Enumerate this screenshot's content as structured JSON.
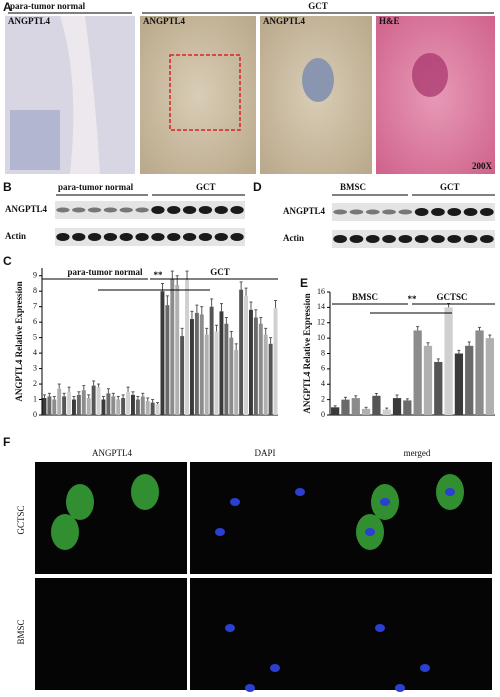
{
  "panels": {
    "A": {
      "letter": "A",
      "group_normal": "para-tumor normal",
      "group_gct": "GCT",
      "stain1": "ANGPTL4",
      "stain2": "ANGPTL4",
      "stain3": "ANGPTL4",
      "stain4": "H&E",
      "magnification": "200X"
    },
    "B": {
      "letter": "B",
      "group_normal": "para-tumor normal",
      "group_gct": "GCT",
      "row1": "ANGPTL4",
      "row2": "Actin"
    },
    "C": {
      "letter": "C"
    },
    "D": {
      "letter": "D",
      "group_bmsc": "BMSC",
      "group_gct": "GCT",
      "row1": "ANGPTL4",
      "row2": "Actin"
    },
    "E": {
      "letter": "E"
    },
    "F": {
      "letter": "F",
      "col1": "ANGPTL4",
      "col2": "DAPI",
      "col3": "merged",
      "row1": "GCTSC",
      "row2": "BMSC"
    }
  },
  "chart_data": [
    {
      "type": "bar",
      "y_label": "ANGPTL4 Relative Expression",
      "annotations": [
        "para-tumor normal",
        "GCT",
        "**"
      ],
      "values": [
        1.1,
        1.2,
        1.0,
        1.7,
        1.2,
        1.5,
        1.0,
        1.3,
        1.6,
        1.1,
        1.9,
        1.8,
        1.0,
        1.4,
        1.2,
        1.0,
        1.1,
        1.5,
        1.3,
        1.0,
        1.2,
        0.9,
        0.8,
        0.7,
        8.0,
        7.1,
        8.8,
        8.4,
        5.1,
        8.7,
        6.2,
        6.6,
        6.5,
        5.2,
        7.0,
        5.4,
        6.7,
        5.9,
        5.0,
        4.2,
        8.1,
        7.7,
        6.8,
        6.3,
        5.9,
        5.2,
        4.6,
        6.9
      ],
      "errors": [
        0.2,
        0.2,
        0.2,
        0.3,
        0.2,
        0.3,
        0.2,
        0.2,
        0.3,
        0.2,
        0.3,
        0.2,
        0.2,
        0.3,
        0.2,
        0.2,
        0.2,
        0.3,
        0.2,
        0.2,
        0.2,
        0.2,
        0.2,
        0.1,
        0.5,
        0.6,
        0.5,
        0.6,
        0.5,
        0.6,
        0.5,
        0.5,
        0.5,
        0.4,
        0.5,
        0.4,
        0.5,
        0.4,
        0.4,
        0.4,
        0.5,
        0.5,
        0.5,
        0.5,
        0.4,
        0.4,
        0.4,
        0.5
      ],
      "colors": [
        "#3a3a3a",
        "#6a6a6a",
        "#8c8c8c",
        "#b0b0b0",
        "#555555",
        "#d0d0d0"
      ],
      "ylim": [
        0,
        9.5
      ],
      "yticks": [
        0,
        1,
        2,
        3,
        4,
        5,
        6,
        7,
        8,
        9
      ]
    },
    {
      "type": "bar",
      "y_label": "ANGPTL4 Relative Expression",
      "annotations": [
        "BMSC",
        "GCTSC",
        "**"
      ],
      "values": [
        1.0,
        2.0,
        2.2,
        0.8,
        2.5,
        0.7,
        2.2,
        1.9,
        11.0,
        9.0,
        6.9,
        14.0,
        8.0,
        9.0,
        11.0,
        10.0
      ],
      "errors": [
        0.2,
        0.3,
        0.3,
        0.2,
        0.3,
        0.2,
        0.4,
        0.2,
        0.5,
        0.4,
        0.4,
        0.5,
        0.4,
        0.5,
        0.4,
        0.4
      ],
      "colors": [
        "#3a3a3a",
        "#6a6a6a",
        "#8c8c8c",
        "#b0b0b0",
        "#555555",
        "#d0d0d0"
      ],
      "ylim": [
        0,
        16
      ],
      "yticks": [
        0,
        2,
        4,
        6,
        8,
        10,
        12,
        14,
        16
      ]
    }
  ]
}
